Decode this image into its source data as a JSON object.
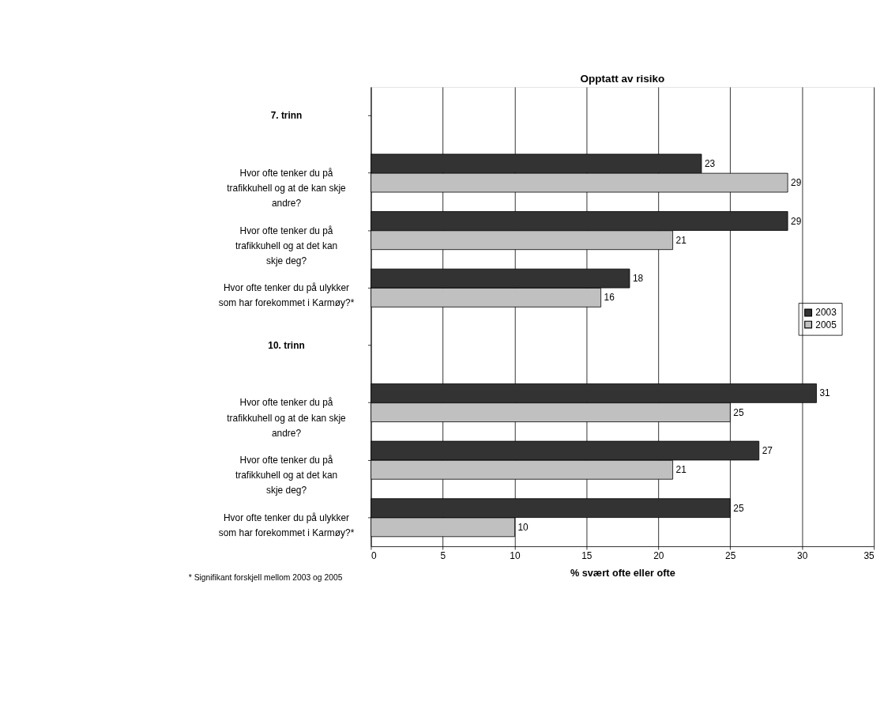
{
  "chart_data": {
    "type": "bar",
    "orientation": "horizontal",
    "title": "Opptatt av risiko",
    "xlabel": "% svært ofte eller ofte",
    "categories": [
      "7. trinn",
      "Hvor ofte tenker du på trafikkuhell og at de kan skje andre?",
      "Hvor ofte tenker du på trafikkuhell og at det kan skje deg?",
      "Hvor ofte tenker du på ulykker som har forekommet i Karmøy?*",
      "10. trinn",
      "Hvor ofte tenker du på trafikkuhell og at de kan skje andre?",
      "Hvor ofte tenker du på trafikkuhell og at det kan skje deg?",
      "Hvor ofte tenker du på ulykker som har forekommet i Karmøy?*"
    ],
    "series": [
      {
        "name": "2003",
        "color": "#333333",
        "values": [
          null,
          23,
          29,
          18,
          null,
          31,
          27,
          25
        ]
      },
      {
        "name": "2005",
        "color": "#c0c0c0",
        "values": [
          null,
          29,
          21,
          16,
          null,
          25,
          21,
          10
        ]
      }
    ],
    "xlim": [
      0,
      35
    ],
    "xticks": [
      0,
      5,
      10,
      15,
      20,
      25,
      30,
      35
    ],
    "grid": "x",
    "legend": "right",
    "data_labels": true,
    "annotations": [
      "* Signifikant forskjell mellom 2003 og 2005"
    ]
  }
}
